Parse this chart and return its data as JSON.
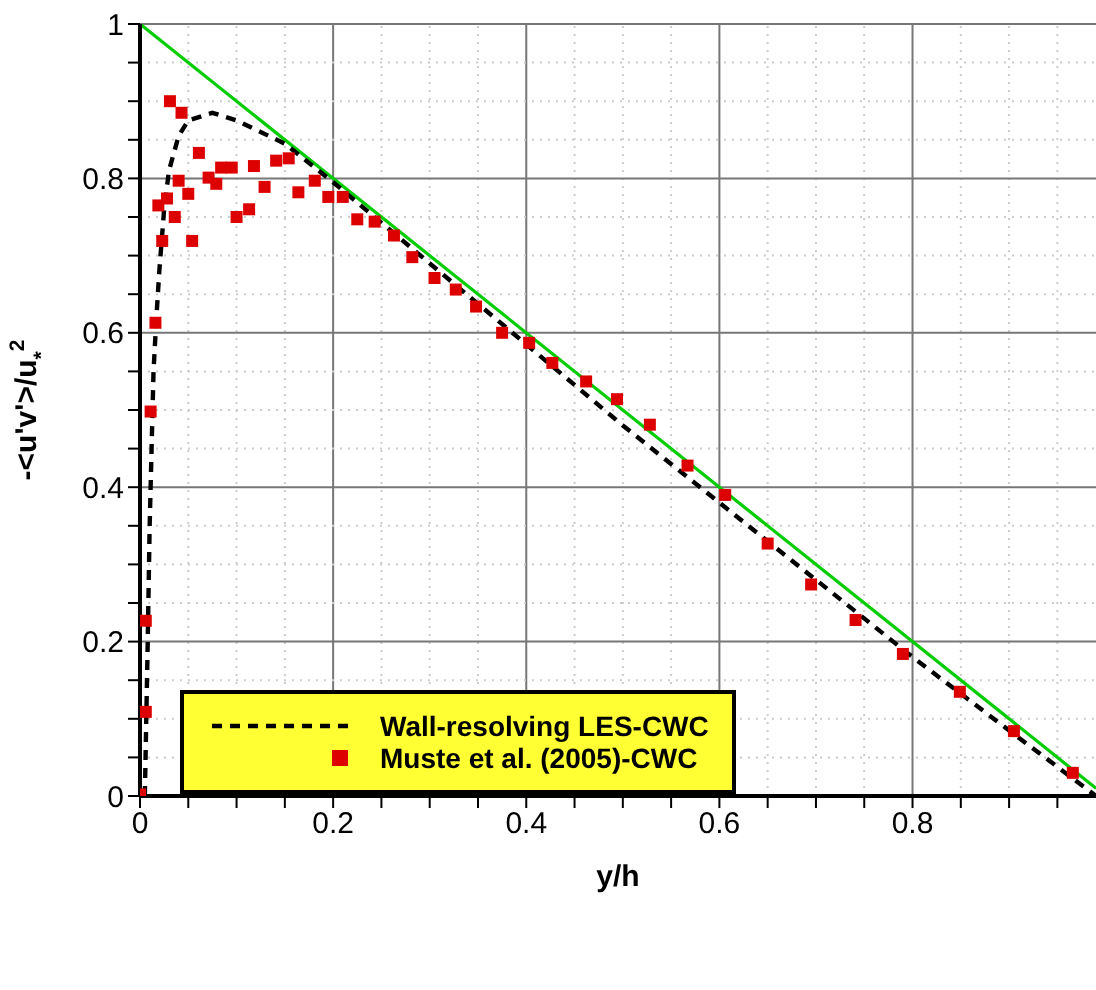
{
  "chart_data": {
    "type": "line",
    "xlabel": "y/h",
    "ylabel": "-<u'v'>/u$_{*}$$^{2}$",
    "xlim": [
      0,
      0.99
    ],
    "ylim": [
      0,
      1
    ],
    "xticks": [
      0,
      {
        "value": 0.05,
        "label": null
      },
      0.2,
      {
        "value": 0.1,
        "label": null
      },
      {
        "value": 0.15,
        "label": null
      },
      {
        "value": 0.25,
        "label": null
      },
      {
        "value": 0.3,
        "label": null
      },
      {
        "value": 0.35,
        "label": null
      },
      0.4,
      {
        "value": 0.45,
        "label": null
      },
      {
        "value": 0.5,
        "label": null
      },
      {
        "value": 0.55,
        "label": null
      },
      0.6,
      {
        "value": 0.65,
        "label": null
      },
      {
        "value": 0.7,
        "label": null
      },
      {
        "value": 0.75,
        "label": null
      },
      0.8,
      {
        "value": 0.85,
        "label": null
      },
      {
        "value": 0.9,
        "label": null
      },
      {
        "value": 0.95,
        "label": null
      }
    ],
    "yticks": [
      0,
      {
        "value": 0.05,
        "label": null
      },
      {
        "value": 0.1,
        "label": null
      },
      {
        "value": 0.15,
        "label": null
      },
      0.2,
      {
        "value": 0.25,
        "label": null
      },
      {
        "value": 0.3,
        "label": null
      },
      {
        "value": 0.35,
        "label": null
      },
      0.4,
      {
        "value": 0.45,
        "label": null
      },
      {
        "value": 0.5,
        "label": null
      },
      {
        "value": 0.55,
        "label": null
      },
      0.6,
      {
        "value": 0.65,
        "label": null
      },
      {
        "value": 0.7,
        "label": null
      },
      {
        "value": 0.75,
        "label": null
      },
      0.8,
      {
        "value": 0.85,
        "label": null
      },
      {
        "value": 0.9,
        "label": null
      },
      {
        "value": 0.95,
        "label": null
      },
      1
    ],
    "grid": true,
    "legend": "bottom left",
    "series": [
      {
        "color": "#00cc00",
        "line_style": "solid",
        "x": [
          0,
          0.99
        ],
        "values": [
          1,
          0.01
        ]
      },
      {
        "name": "Wall-resolving LES-CWC",
        "color": "#000000",
        "line_style": "dashed",
        "x": [
          0.005,
          0.008,
          0.01,
          0.012,
          0.014,
          0.017,
          0.02,
          0.025,
          0.03,
          0.04,
          0.05,
          0.075,
          0.1,
          0.15,
          0.2,
          0.3,
          0.4,
          0.5,
          0.6,
          0.7,
          0.8,
          0.9,
          0.99
        ],
        "values": [
          0,
          0.2,
          0.35,
          0.45,
          0.55,
          0.62,
          0.68,
          0.76,
          0.81,
          0.855,
          0.875,
          0.885,
          0.875,
          0.845,
          0.795,
          0.69,
          0.585,
          0.48,
          0.38,
          0.28,
          0.18,
          0.085,
          0
        ]
      },
      {
        "type": "scatter",
        "name": "Muste et al. (2005)-CWC",
        "color": "#dd0000",
        "marker": "square",
        "x": [
          0,
          0.006,
          0.006,
          0.011,
          0.016,
          0.019,
          0.023,
          0.028,
          0.031,
          0.036,
          0.04,
          0.043,
          0.05,
          0.054,
          0.061,
          0.071,
          0.079,
          0.084,
          0.095,
          0.1,
          0.113,
          0.118,
          0.129,
          0.141,
          0.154,
          0.164,
          0.181,
          0.195,
          0.21,
          0.225,
          0.243,
          0.263,
          0.282,
          0.305,
          0.327,
          0.348,
          0.375,
          0.403,
          0.427,
          0.462,
          0.494,
          0.528,
          0.567,
          0.606,
          0.65,
          0.695,
          0.741,
          0.79,
          0.849,
          0.905,
          0.966
        ],
        "values": [
          0.002,
          0.109,
          0.227,
          0.498,
          0.613,
          0.765,
          0.719,
          0.774,
          0.9,
          0.75,
          0.797,
          0.885,
          0.78,
          0.719,
          0.833,
          0.801,
          0.793,
          0.814,
          0.814,
          0.75,
          0.76,
          0.816,
          0.789,
          0.823,
          0.826,
          0.782,
          0.797,
          0.776,
          0.776,
          0.747,
          0.744,
          0.726,
          0.698,
          0.671,
          0.656,
          0.634,
          0.6,
          0.587,
          0.561,
          0.537,
          0.514,
          0.481,
          0.428,
          0.39,
          0.327,
          0.274,
          0.228,
          0.184,
          0.135,
          0.084,
          0.03
        ]
      }
    ]
  }
}
